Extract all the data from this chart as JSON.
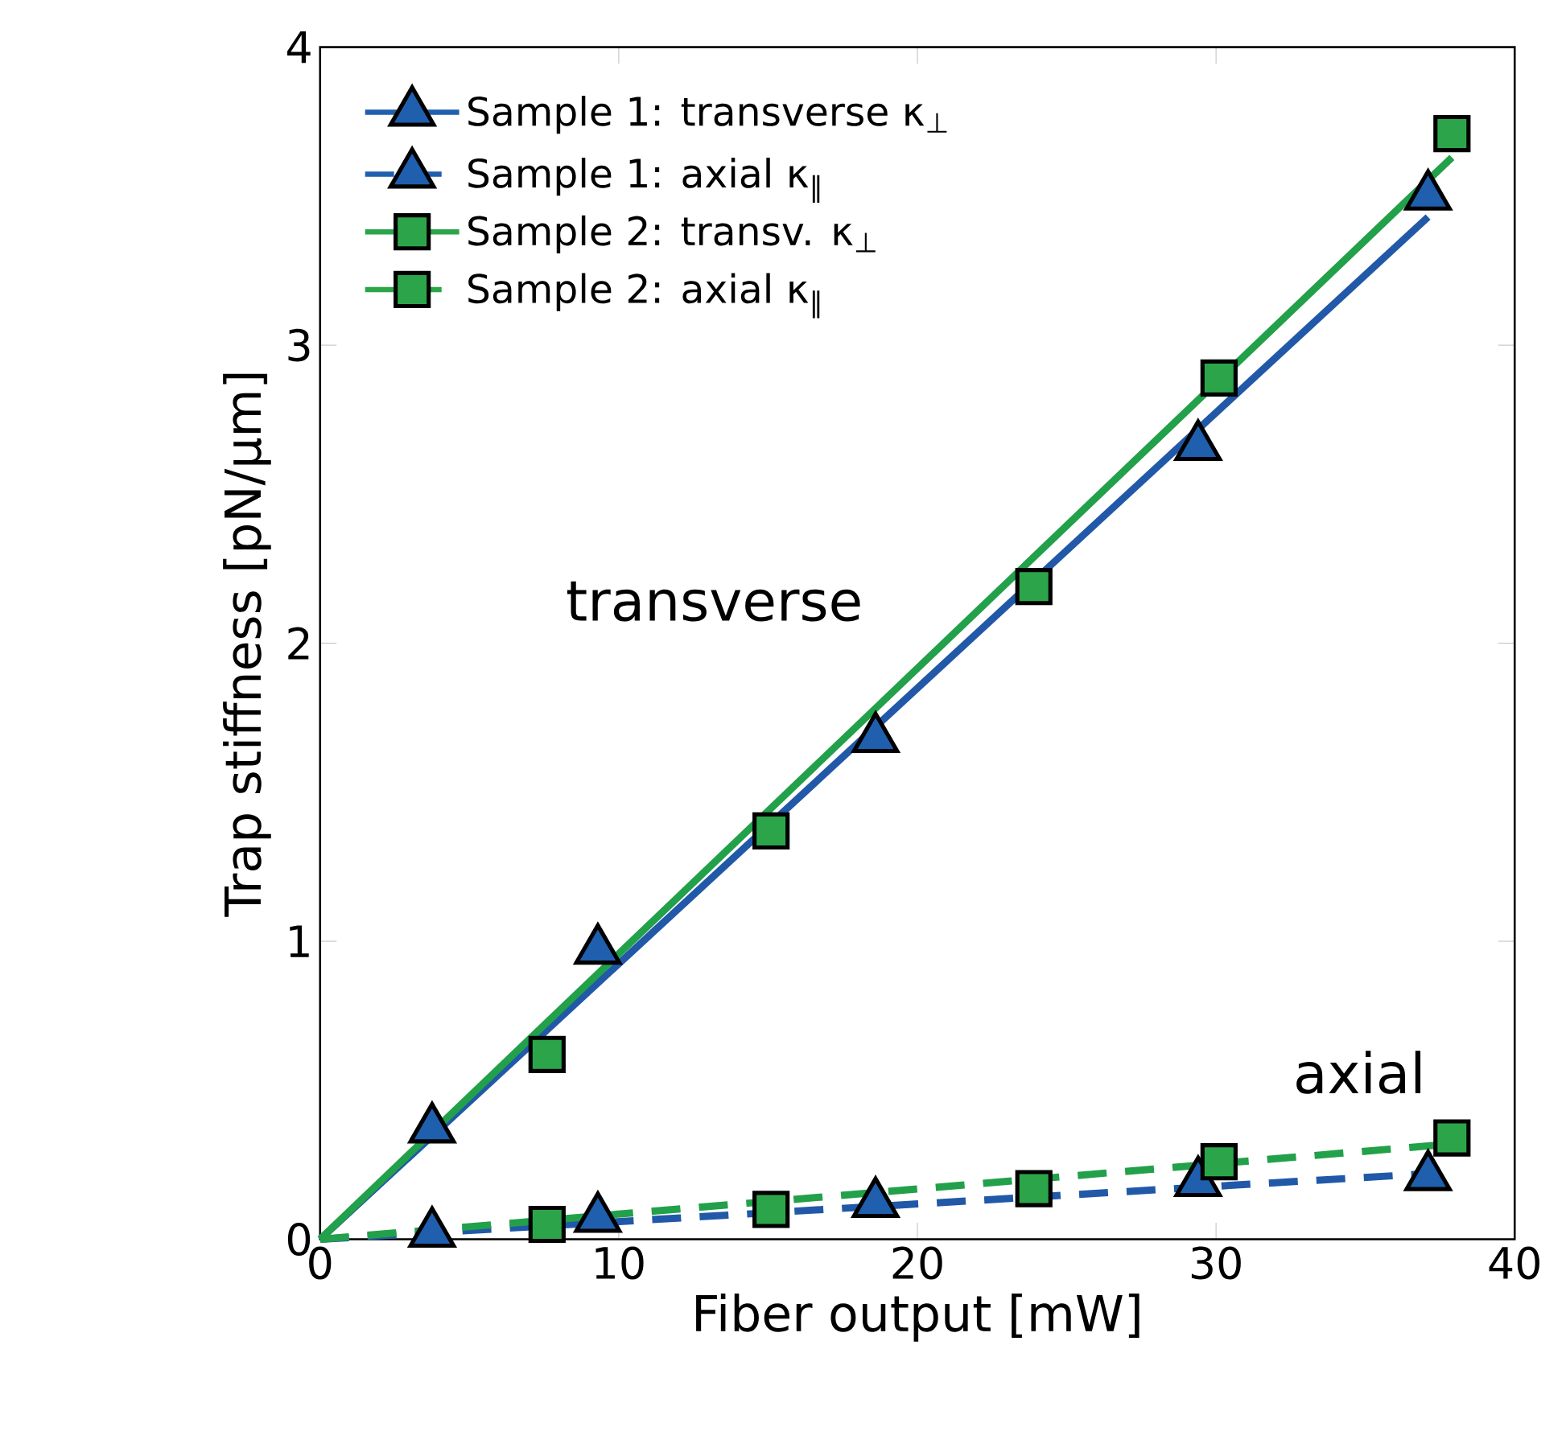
{
  "chart_data": {
    "type": "scatter",
    "xlabel": "Fiber output [mW]",
    "ylabel": "Trap stiffness [pN/µm]",
    "xlim": [
      0,
      40
    ],
    "ylim": [
      0,
      4
    ],
    "xticks": [
      0,
      10,
      20,
      30,
      40
    ],
    "yticks": [
      0,
      1,
      2,
      3,
      4
    ],
    "legend": "top left",
    "series": [
      {
        "name": "Sample 1: transverse κ$_{⊥}$",
        "color": "#1f5fae",
        "marker": "triangle",
        "line_style": "solid",
        "x": [
          3.75,
          9.3,
          18.6,
          29.4,
          37.1
        ],
        "values": [
          0.37,
          0.97,
          1.68,
          2.66,
          3.5
        ]
      },
      {
        "name": "Sample 1: axial κ$_{‖}$",
        "color": "#1f5fae",
        "marker": "triangle",
        "line_style": "dashed",
        "x": [
          3.75,
          9.3,
          18.6,
          29.4,
          37.1
        ],
        "values": [
          0.02,
          0.07,
          0.12,
          0.19,
          0.21
        ]
      },
      {
        "name": "Sample 2: transv. κ$_{⊥}$",
        "color": "#2ca54a",
        "marker": "square",
        "line_style": "solid",
        "x": [
          7.6,
          15.1,
          23.9,
          30.1,
          37.9
        ],
        "values": [
          0.62,
          1.37,
          2.19,
          2.89,
          3.71
        ]
      },
      {
        "name": "Sample 2: axial κ$_{‖}$",
        "color": "#2ca54a",
        "marker": "square",
        "line_style": "dashed",
        "x": [
          7.6,
          15.1,
          23.9,
          30.1,
          37.9
        ],
        "values": [
          0.05,
          0.1,
          0.17,
          0.26,
          0.34
        ]
      },
      {
        "type": "line",
        "color": "#2159a8",
        "line_style": "solid",
        "x": [
          0,
          37.1
        ],
        "values": [
          0,
          3.43
        ]
      },
      {
        "type": "line",
        "color": "#2159a8",
        "line_style": "dashed",
        "x": [
          0,
          37.1
        ],
        "values": [
          0,
          0.22
        ]
      },
      {
        "type": "line",
        "color": "#22a04a",
        "line_style": "solid",
        "x": [
          0,
          37.9
        ],
        "values": [
          0,
          3.63
        ]
      },
      {
        "type": "line",
        "color": "#22a04a",
        "line_style": "dashed",
        "x": [
          0,
          37.9
        ],
        "values": [
          0,
          0.32
        ]
      }
    ],
    "annotations": [
      "transverse",
      "axial"
    ]
  }
}
